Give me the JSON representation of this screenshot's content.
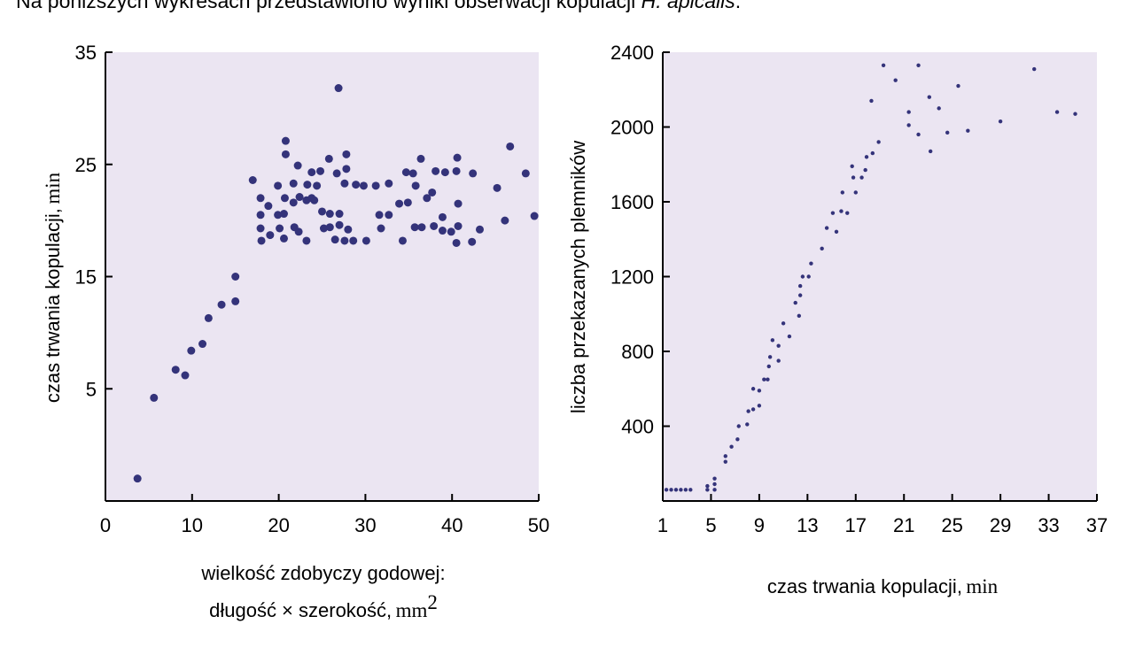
{
  "intro": {
    "text": "Na poniższych wykresach przedstawiono wyniki obserwacji kopulacji ",
    "species": "H. apicalis",
    "end": "."
  },
  "colors": {
    "background": "#ebe5f2",
    "points": "#34337a"
  },
  "chart_data": [
    {
      "type": "scatter",
      "title": "",
      "xlabel_line1": "wielkość zdobyczy godowej:",
      "xlabel_line2": "długość × szerokość,",
      "xlabel_unit": "mm",
      "xlabel_sup": "2",
      "ylabel": "czas trwania kopulacji,",
      "ylabel_unit": "min",
      "xlim": [
        0,
        50
      ],
      "ylim": [
        -5,
        35
      ],
      "xticks": [
        "0",
        "10",
        "20",
        "30",
        "40",
        "50"
      ],
      "yticks": [
        "5",
        "15",
        "25",
        "35"
      ],
      "points": [
        [
          3.7,
          -3
        ],
        [
          5.6,
          4.2
        ],
        [
          8.1,
          6.7
        ],
        [
          9.2,
          6.2
        ],
        [
          9.9,
          8.4
        ],
        [
          11.2,
          9.0
        ],
        [
          11.9,
          11.3
        ],
        [
          13.4,
          12.5
        ],
        [
          15.0,
          15.0
        ],
        [
          15.0,
          12.8
        ],
        [
          17.0,
          23.6
        ],
        [
          17.9,
          22.0
        ],
        [
          17.9,
          20.5
        ],
        [
          17.9,
          19.3
        ],
        [
          18.0,
          18.2
        ],
        [
          18.8,
          21.3
        ],
        [
          19.0,
          18.7
        ],
        [
          19.9,
          23.1
        ],
        [
          19.9,
          20.5
        ],
        [
          20.1,
          19.3
        ],
        [
          20.6,
          20.6
        ],
        [
          20.6,
          18.4
        ],
        [
          20.7,
          22.0
        ],
        [
          20.8,
          27.1
        ],
        [
          20.8,
          25.9
        ],
        [
          21.7,
          23.3
        ],
        [
          21.7,
          21.6
        ],
        [
          21.8,
          19.4
        ],
        [
          22.2,
          24.9
        ],
        [
          22.3,
          19.0
        ],
        [
          22.4,
          22.1
        ],
        [
          23.2,
          21.8
        ],
        [
          23.2,
          18.2
        ],
        [
          23.3,
          23.2
        ],
        [
          23.8,
          22.0
        ],
        [
          23.8,
          24.3
        ],
        [
          24.1,
          21.8
        ],
        [
          24.4,
          23.1
        ],
        [
          24.8,
          24.4
        ],
        [
          25.0,
          20.8
        ],
        [
          25.2,
          19.3
        ],
        [
          25.8,
          25.5
        ],
        [
          25.9,
          20.6
        ],
        [
          25.9,
          19.4
        ],
        [
          26.5,
          18.3
        ],
        [
          26.7,
          24.2
        ],
        [
          26.9,
          31.8
        ],
        [
          27.0,
          19.6
        ],
        [
          27.0,
          20.6
        ],
        [
          27.6,
          23.3
        ],
        [
          27.6,
          18.2
        ],
        [
          27.8,
          25.9
        ],
        [
          27.8,
          24.6
        ],
        [
          28.0,
          19.2
        ],
        [
          28.6,
          18.2
        ],
        [
          28.9,
          23.2
        ],
        [
          29.8,
          23.1
        ],
        [
          30.1,
          18.2
        ],
        [
          31.2,
          23.1
        ],
        [
          31.6,
          20.5
        ],
        [
          31.8,
          19.3
        ],
        [
          32.7,
          23.3
        ],
        [
          32.7,
          20.5
        ],
        [
          33.9,
          21.5
        ],
        [
          34.3,
          18.2
        ],
        [
          34.7,
          24.3
        ],
        [
          34.9,
          21.6
        ],
        [
          35.5,
          24.2
        ],
        [
          35.7,
          19.4
        ],
        [
          35.8,
          23.1
        ],
        [
          36.4,
          25.5
        ],
        [
          36.5,
          19.4
        ],
        [
          37.1,
          22.0
        ],
        [
          37.7,
          22.5
        ],
        [
          37.9,
          19.5
        ],
        [
          38.1,
          24.4
        ],
        [
          38.9,
          20.3
        ],
        [
          38.9,
          19.1
        ],
        [
          39.2,
          24.3
        ],
        [
          39.9,
          19.0
        ],
        [
          40.5,
          24.4
        ],
        [
          40.5,
          18.0
        ],
        [
          40.6,
          25.6
        ],
        [
          40.7,
          21.5
        ],
        [
          40.7,
          19.5
        ],
        [
          42.3,
          18.1
        ],
        [
          42.4,
          24.2
        ],
        [
          43.2,
          19.2
        ],
        [
          45.2,
          22.9
        ],
        [
          46.1,
          20.0
        ],
        [
          46.7,
          26.6
        ],
        [
          48.5,
          24.2
        ],
        [
          49.5,
          20.4
        ]
      ]
    },
    {
      "type": "scatter",
      "title": "",
      "xlabel": "czas trwania kopulacji,",
      "xlabel_unit": "min",
      "ylabel": "liczba przekazanych plemników",
      "xlim": [
        1,
        37
      ],
      "ylim": [
        0,
        2400
      ],
      "xticks": [
        "1",
        "5",
        "9",
        "13",
        "17",
        "21",
        "25",
        "29",
        "33",
        "37"
      ],
      "yticks": [
        "400",
        "800",
        "1200",
        "1600",
        "2000",
        "2400"
      ],
      "points": [
        [
          1.3,
          60
        ],
        [
          1.7,
          60
        ],
        [
          2.1,
          60
        ],
        [
          2.5,
          60
        ],
        [
          2.9,
          60
        ],
        [
          3.3,
          60
        ],
        [
          4.7,
          60
        ],
        [
          4.7,
          80
        ],
        [
          5.3,
          60
        ],
        [
          5.3,
          90
        ],
        [
          5.3,
          120
        ],
        [
          6.2,
          210
        ],
        [
          6.2,
          240
        ],
        [
          6.7,
          290
        ],
        [
          7.2,
          330
        ],
        [
          7.3,
          400
        ],
        [
          8.0,
          410
        ],
        [
          8.1,
          480
        ],
        [
          8.5,
          490
        ],
        [
          8.5,
          600
        ],
        [
          9.0,
          510
        ],
        [
          9.0,
          590
        ],
        [
          9.4,
          650
        ],
        [
          9.7,
          650
        ],
        [
          9.8,
          720
        ],
        [
          9.9,
          770
        ],
        [
          10.1,
          860
        ],
        [
          10.6,
          750
        ],
        [
          10.6,
          830
        ],
        [
          11.0,
          950
        ],
        [
          11.5,
          880
        ],
        [
          12.0,
          1060
        ],
        [
          12.3,
          990
        ],
        [
          12.4,
          1100
        ],
        [
          12.4,
          1150
        ],
        [
          12.6,
          1200
        ],
        [
          13.1,
          1200
        ],
        [
          13.3,
          1270
        ],
        [
          14.2,
          1350
        ],
        [
          14.6,
          1460
        ],
        [
          15.1,
          1540
        ],
        [
          15.4,
          1440
        ],
        [
          15.8,
          1550
        ],
        [
          15.9,
          1650
        ],
        [
          16.3,
          1540
        ],
        [
          16.7,
          1790
        ],
        [
          16.8,
          1730
        ],
        [
          17.0,
          1650
        ],
        [
          17.5,
          1730
        ],
        [
          17.8,
          1770
        ],
        [
          17.9,
          1840
        ],
        [
          18.3,
          2140
        ],
        [
          18.4,
          1860
        ],
        [
          18.9,
          1920
        ],
        [
          19.3,
          2330
        ],
        [
          20.3,
          2250
        ],
        [
          21.4,
          2080
        ],
        [
          21.4,
          2010
        ],
        [
          22.2,
          2330
        ],
        [
          22.2,
          1960
        ],
        [
          23.1,
          2160
        ],
        [
          23.2,
          1870
        ],
        [
          23.9,
          2100
        ],
        [
          24.6,
          1970
        ],
        [
          25.5,
          2220
        ],
        [
          26.3,
          1980
        ],
        [
          29.0,
          2030
        ],
        [
          31.8,
          2310
        ],
        [
          33.7,
          2080
        ],
        [
          35.2,
          2070
        ]
      ]
    }
  ]
}
